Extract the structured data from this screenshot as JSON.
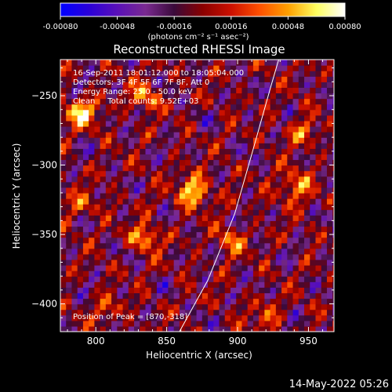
{
  "colorbar": {
    "ticks": [
      "-0.00080",
      "-0.00048",
      "-0.00016",
      "0.00016",
      "0.00048",
      "0.00080"
    ],
    "unit_label": "(photons cm⁻² s⁻¹ asec⁻²)"
  },
  "colors": {
    "colormap": [
      "#0000ff",
      "#2a00d8",
      "#5a10b8",
      "#7a2a90",
      "#3a0a3a",
      "#8a0000",
      "#cc1000",
      "#ff5000",
      "#ffa000",
      "#ffff60",
      "#ffffff"
    ],
    "limb_line": "#ffffff",
    "background": "#000000"
  },
  "chart_data": {
    "type": "heatmap",
    "title": "Reconstructed RHESSI Image",
    "xlabel": "Heliocentric X (arcsec)",
    "ylabel": "Heliocentric Y (arcsec)",
    "xlim": [
      775,
      968
    ],
    "ylim": [
      -420,
      -224
    ],
    "xticks": [
      800,
      850,
      900,
      950
    ],
    "yticks": [
      -250,
      -300,
      -350,
      -400
    ],
    "xtick_labels": [
      "800",
      "850",
      "900",
      "950"
    ],
    "ytick_labels": [
      "−250",
      "−300",
      "−350",
      "−400"
    ],
    "colorbar_range": [
      -0.0008,
      0.0008
    ],
    "peak": [
      870,
      -318
    ],
    "annotations": [
      "16-Sep-2011 18:01:12.000 to 18:05:04.000",
      "Detectors: 3F 4F 5F 6F 7F 8F, Att 0",
      "Energy Range: 25.0 - 50.0 keV",
      "Clean     Total counts: 9.52E+03"
    ],
    "peak_label": "Position of Peak = [870,-318]",
    "limb_line": [
      [
        859,
        -420
      ],
      [
        879,
        -383
      ],
      [
        898,
        -335
      ],
      [
        912,
        -285
      ],
      [
        923,
        -245
      ],
      [
        929,
        -224
      ]
    ],
    "hotspots": [
      {
        "x": 790,
        "y": -262,
        "value": 0.00072
      },
      {
        "x": 835,
        "y": -250,
        "value": 0.0005
      },
      {
        "x": 870,
        "y": -318,
        "value": 0.0008
      },
      {
        "x": 940,
        "y": -315,
        "value": 0.00065
      },
      {
        "x": 835,
        "y": -352,
        "value": 0.00055
      },
      {
        "x": 895,
        "y": -355,
        "value": 0.0004
      },
      {
        "x": 945,
        "y": -275,
        "value": 0.0004
      },
      {
        "x": 810,
        "y": -405,
        "value": 0.0003
      },
      {
        "x": 920,
        "y": -410,
        "value": 0.00035
      },
      {
        "x": 790,
        "y": -330,
        "value": 0.00035
      }
    ]
  },
  "footer": {
    "date": "14-May-2022 05:26"
  }
}
